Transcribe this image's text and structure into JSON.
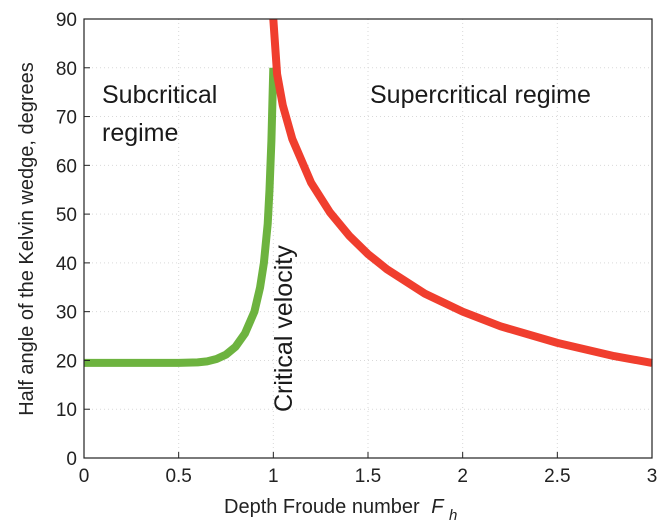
{
  "chart_data": {
    "type": "line",
    "title": "",
    "xlabel": "Depth Froude number",
    "xlabel_symbol": "F",
    "xlabel_subscript": "h",
    "ylabel": "Half angle of the Kelvin wedge, degrees",
    "xlim": [
      0,
      3
    ],
    "ylim": [
      0,
      90
    ],
    "xticks": [
      0,
      0.5,
      1,
      1.5,
      2,
      2.5,
      3
    ],
    "xtick_labels": [
      "0",
      "0.5",
      "1",
      "1.5",
      "2",
      "2.5",
      "3"
    ],
    "yticks": [
      0,
      10,
      20,
      30,
      40,
      50,
      60,
      70,
      80,
      90
    ],
    "ytick_labels": [
      "0",
      "10",
      "20",
      "30",
      "40",
      "50",
      "60",
      "70",
      "80",
      "90"
    ],
    "grid": true,
    "series": [
      {
        "color": "#6db33f",
        "x": [
          0,
          0.3,
          0.5,
          0.6,
          0.65,
          0.7,
          0.75,
          0.8,
          0.85,
          0.9,
          0.93,
          0.95,
          0.97,
          0.98,
          0.99,
          1.0
        ],
        "y": [
          19.5,
          19.5,
          19.5,
          19.6,
          19.8,
          20.3,
          21.2,
          22.8,
          25.5,
          30.0,
          35.0,
          40.0,
          48.0,
          55.0,
          65.0,
          80.0
        ]
      },
      {
        "color": "#f03e2e",
        "x": [
          1.0,
          1.02,
          1.05,
          1.1,
          1.2,
          1.3,
          1.4,
          1.5,
          1.6,
          1.8,
          2.0,
          2.2,
          2.5,
          2.8,
          3.0
        ],
        "y": [
          90.0,
          78.7,
          72.3,
          65.4,
          56.4,
          50.3,
          45.6,
          41.8,
          38.7,
          33.7,
          30.0,
          27.0,
          23.6,
          20.9,
          19.5
        ]
      }
    ],
    "annotations": {
      "subcritical": [
        "Subcritical",
        "regime"
      ],
      "supercritical": "Supercritical regime",
      "critical": "Critical velocity"
    }
  }
}
